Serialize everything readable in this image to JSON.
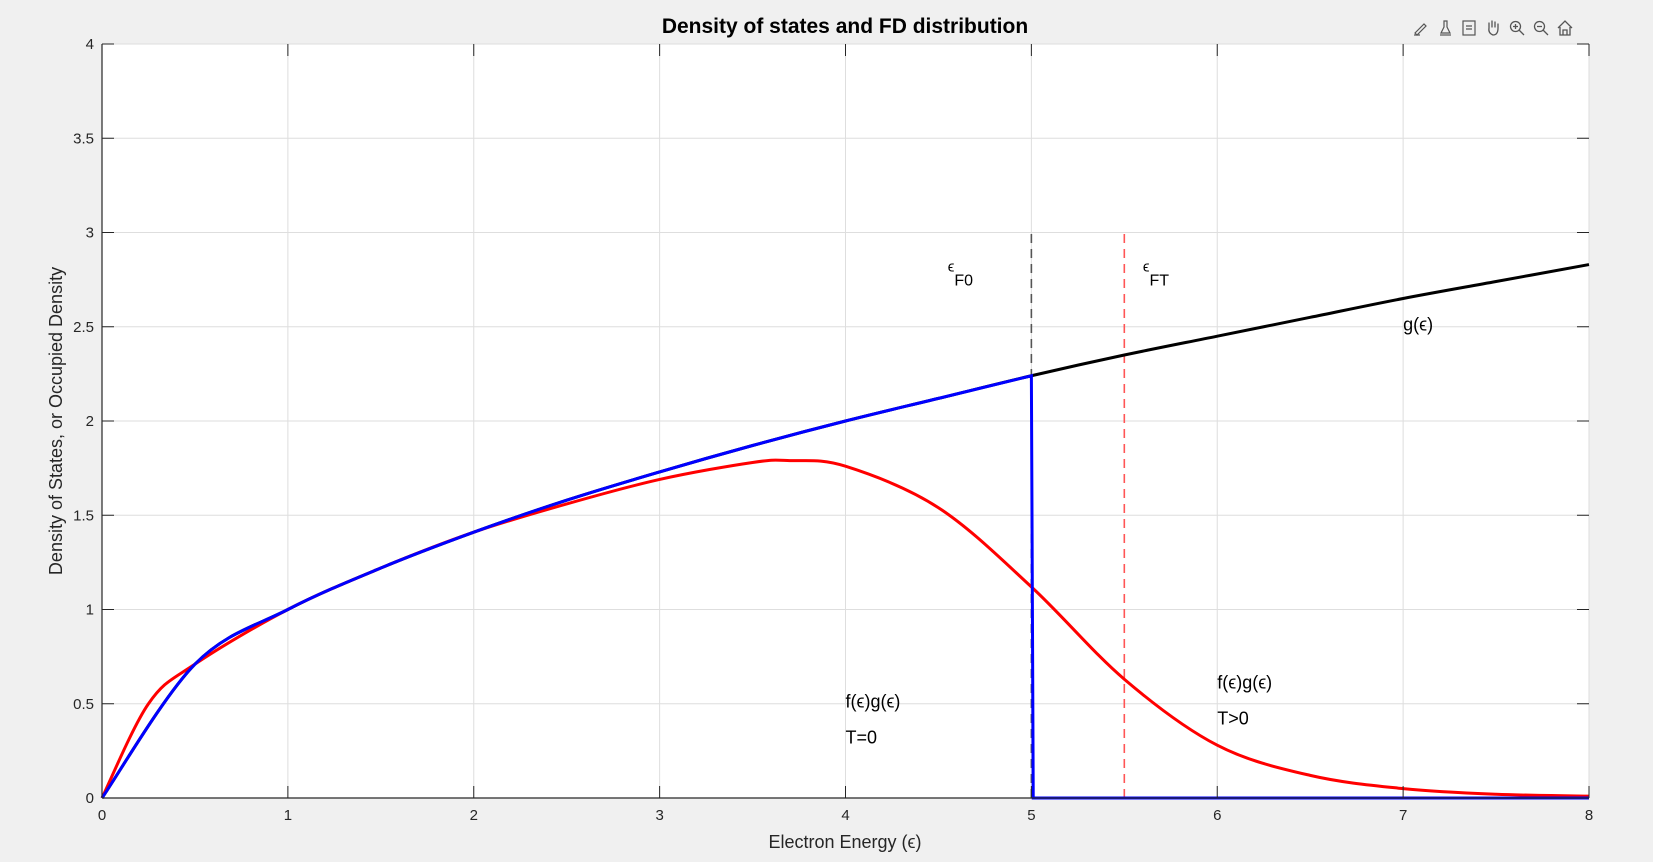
{
  "toolbar": {
    "icons": [
      "edit-plot-icon",
      "brush-icon",
      "data-tip-icon",
      "pan-icon",
      "zoom-in-icon",
      "zoom-out-icon",
      "home-icon"
    ]
  },
  "chart_data": {
    "type": "line",
    "title": "Density of states and FD distribution",
    "xlabel": "Electron Energy (ϵ)",
    "ylabel": "Density of States, or Occupied Density",
    "xlim": [
      0,
      8
    ],
    "ylim": [
      0,
      4
    ],
    "xticks": [
      "0",
      "1",
      "2",
      "3",
      "4",
      "5",
      "6",
      "7",
      "8"
    ],
    "yticks": [
      "0",
      "0.5",
      "1",
      "1.5",
      "2",
      "2.5",
      "3",
      "3.5",
      "4"
    ],
    "grid": true,
    "series": [
      {
        "label": "g(ϵ)",
        "color": "#000000",
        "x": [
          0,
          0.5,
          1,
          1.5,
          2,
          2.5,
          3,
          3.5,
          4,
          4.5,
          5,
          5.5,
          6,
          6.5,
          7,
          7.5,
          8
        ],
        "y": [
          0,
          0.71,
          1.0,
          1.22,
          1.41,
          1.58,
          1.73,
          1.87,
          2.0,
          2.12,
          2.24,
          2.35,
          2.45,
          2.55,
          2.65,
          2.74,
          2.83
        ]
      },
      {
        "label": "f(ϵ)g(ϵ) T=0",
        "color": "#0000ff",
        "x": [
          0,
          0.5,
          1,
          1.5,
          2,
          2.5,
          3,
          3.5,
          4,
          4.5,
          5,
          5.01,
          5.5,
          6,
          6.5,
          7,
          7.5,
          8
        ],
        "y": [
          0,
          0.71,
          1.0,
          1.22,
          1.41,
          1.58,
          1.73,
          1.87,
          2.0,
          2.12,
          2.24,
          0,
          0,
          0,
          0,
          0,
          0,
          0
        ]
      },
      {
        "label": "f(ϵ)g(ϵ) T>0",
        "color": "#ff0000",
        "x": [
          0,
          0.25,
          0.5,
          1,
          1.5,
          2,
          2.5,
          3,
          3.5,
          3.7,
          4,
          4.5,
          5,
          5.5,
          6,
          6.5,
          7,
          7.5,
          8
        ],
        "y": [
          0,
          0.5,
          0.71,
          1.0,
          1.22,
          1.41,
          1.56,
          1.69,
          1.78,
          1.79,
          1.76,
          1.54,
          1.12,
          0.63,
          0.28,
          0.12,
          0.05,
          0.02,
          0.01
        ]
      }
    ],
    "reference_lines": [
      {
        "label": "ϵ F0",
        "x": 5.0,
        "y_range": [
          0,
          3
        ],
        "color": "#555555",
        "style": "dashed"
      },
      {
        "label": "ϵ FT",
        "x": 5.5,
        "y_range": [
          0,
          3
        ],
        "color": "#ff5555",
        "style": "dashed"
      }
    ],
    "annotations": [
      {
        "text": "ϵ",
        "sub": "F0",
        "x": 4.55,
        "y": 2.76
      },
      {
        "text": "ϵ",
        "sub": "FT",
        "x": 5.6,
        "y": 2.76
      },
      {
        "text": "g(ϵ)",
        "x": 7.0,
        "y": 2.48
      },
      {
        "text": "f(ϵ)g(ϵ)",
        "x": 4.0,
        "y": 0.48
      },
      {
        "text": "T=0",
        "x": 4.0,
        "y": 0.29
      },
      {
        "text": "f(ϵ)g(ϵ)",
        "x": 6.0,
        "y": 0.58
      },
      {
        "text": "T>0",
        "x": 6.0,
        "y": 0.39
      }
    ]
  }
}
